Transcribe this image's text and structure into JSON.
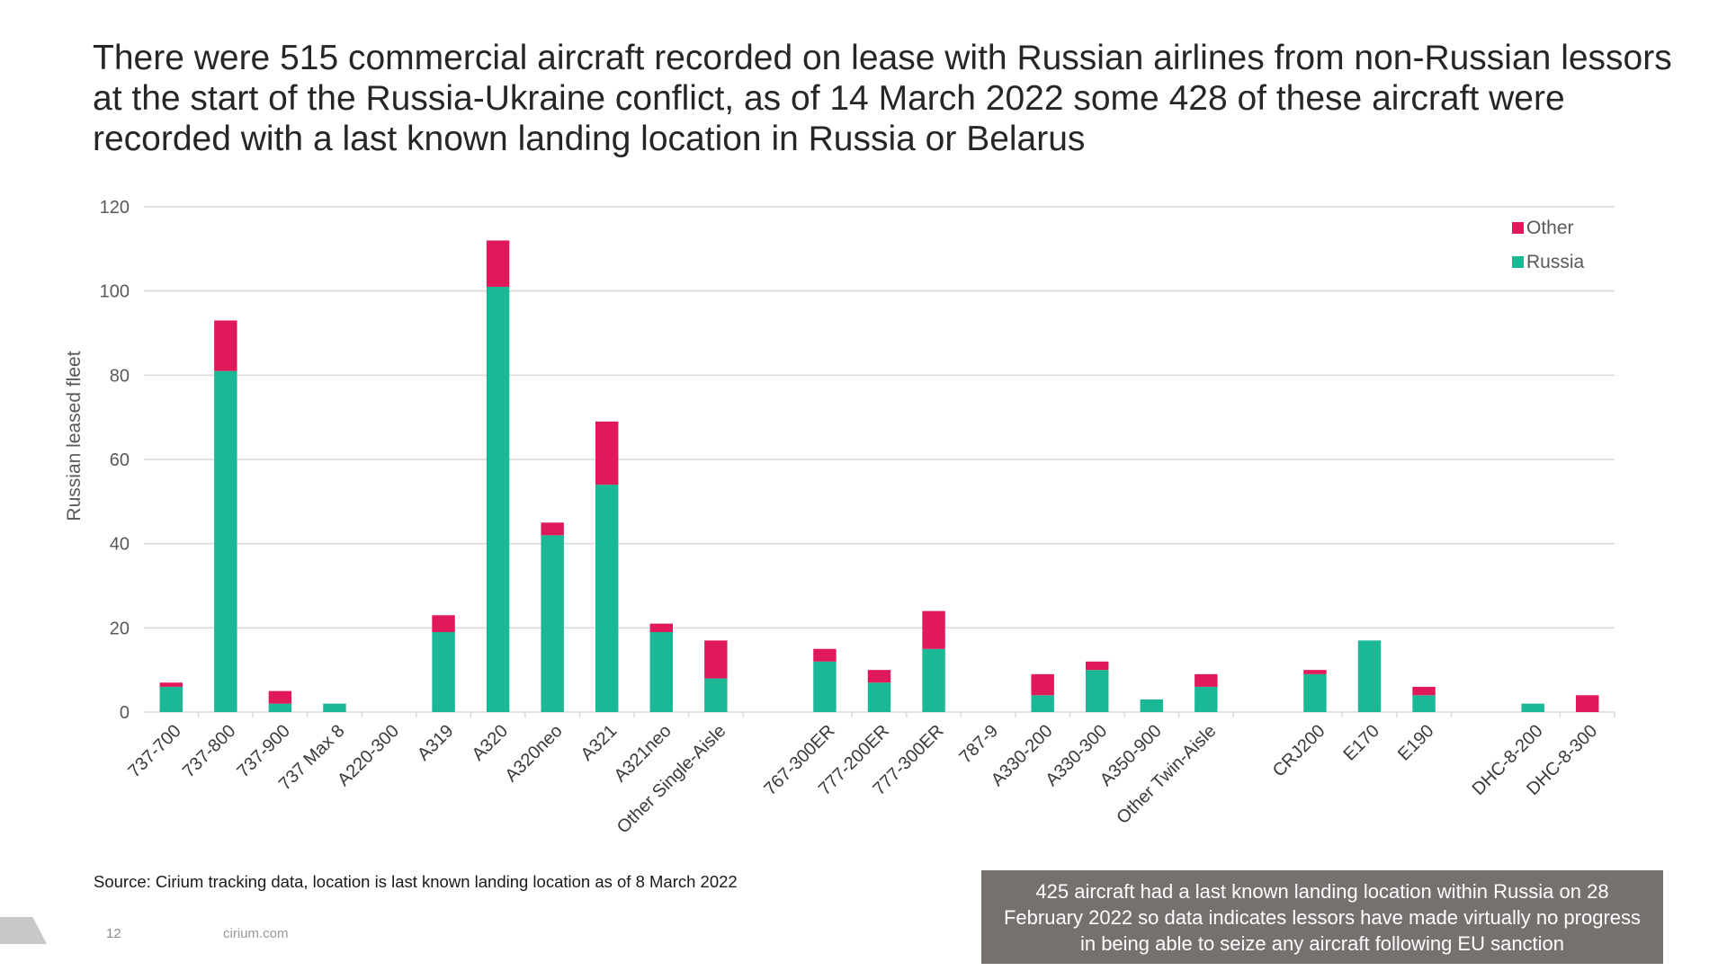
{
  "title": "There were 515 commercial aircraft recorded on lease with Russian airlines from non-Russian lessors at the start of the Russia-Ukraine conflict, as of 14 March 2022 some 428 of these aircraft were recorded with a last known landing location in Russia or Belarus",
  "source": "Source: Cirium tracking data, location is last known landing location as of 8 March 2022",
  "callout": "425 aircraft had a last known landing location within Russia on 28 February 2022 so data indicates lessors have made virtually no progress in being able to seize any aircraft following EU sanction",
  "footer": {
    "page_number": "12",
    "site": "cirium.com"
  },
  "colors": {
    "russia": "#1ab894",
    "other": "#e0195a",
    "grid": "#d9d9d9",
    "axis_text": "#595959",
    "callout_bg": "#76706f"
  },
  "chart_data": {
    "type": "bar",
    "stacked": true,
    "title": "",
    "xlabel": "",
    "ylabel": "Russian leased fleet",
    "ylim": [
      0,
      120
    ],
    "yticks": [
      0,
      20,
      40,
      60,
      80,
      100,
      120
    ],
    "grid": true,
    "legend_position": "top-right",
    "groups": [
      [
        "737-700",
        "737-800",
        "737-900",
        "737 Max 8",
        "A220-300",
        "A319",
        "A320",
        "A320neo",
        "A321",
        "A321neo",
        "Other Single-Aisle"
      ],
      [
        "767-300ER",
        "777-200ER",
        "777-300ER",
        "787-9",
        "A330-200",
        "A330-300",
        "A350-900",
        "Other Twin-Aisle"
      ],
      [
        "CRJ200",
        "E170",
        "E190"
      ],
      [
        "DHC-8-200",
        "DHC-8-300"
      ]
    ],
    "categories": [
      "737-700",
      "737-800",
      "737-900",
      "737 Max 8",
      "A220-300",
      "A319",
      "A320",
      "A320neo",
      "A321",
      "A321neo",
      "Other Single-Aisle",
      "767-300ER",
      "777-200ER",
      "777-300ER",
      "787-9",
      "A330-200",
      "A330-300",
      "A350-900",
      "Other Twin-Aisle",
      "CRJ200",
      "E170",
      "E190",
      "DHC-8-200",
      "DHC-8-300"
    ],
    "series": [
      {
        "name": "Russia",
        "values": [
          6,
          81,
          2,
          2,
          0,
          19,
          101,
          42,
          54,
          19,
          8,
          12,
          7,
          15,
          0,
          4,
          10,
          3,
          6,
          9,
          17,
          4,
          2,
          0
        ]
      },
      {
        "name": "Other",
        "values": [
          1,
          12,
          3,
          0,
          0,
          4,
          11,
          3,
          15,
          2,
          9,
          3,
          3,
          9,
          0,
          5,
          2,
          0,
          3,
          1,
          0,
          2,
          0,
          4
        ]
      }
    ],
    "legend": [
      "Other",
      "Russia"
    ]
  }
}
